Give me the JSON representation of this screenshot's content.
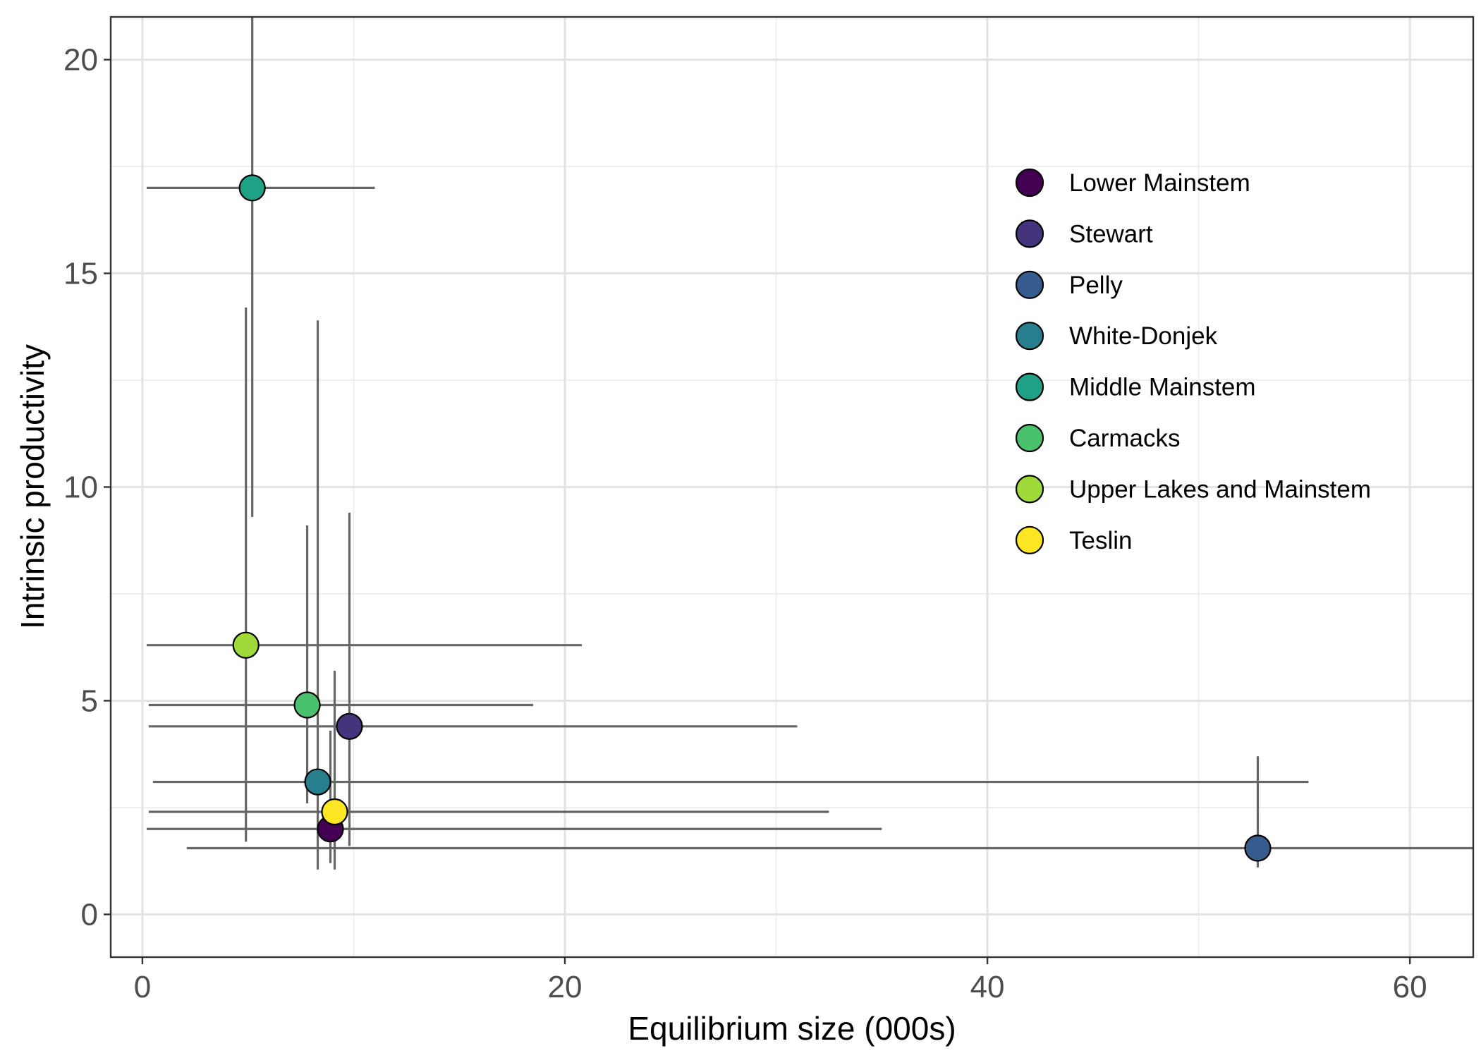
{
  "chart_data": {
    "type": "scatter",
    "title": "",
    "xlabel": "Equilibrium size (000s)",
    "ylabel": "Intrinsic productivity",
    "xlim": [
      -1.5,
      63
    ],
    "ylim": [
      -1,
      21
    ],
    "x_ticks": [
      0,
      20,
      40,
      60
    ],
    "x_minor_ticks": [
      10,
      30,
      50
    ],
    "y_ticks": [
      0,
      5,
      10,
      15,
      20
    ],
    "y_minor_ticks": [
      2.5,
      7.5,
      12.5,
      17.5
    ],
    "grid": true,
    "legend_position": "top-right",
    "error_bars": true,
    "series": [
      {
        "name": "Lower Mainstem",
        "color": "#440154",
        "x": 8.9,
        "y": 2.0,
        "x_low": 0.2,
        "x_high": 35.0,
        "y_low": 1.2,
        "y_high": 4.3
      },
      {
        "name": "Stewart",
        "color": "#46337E",
        "x": 9.8,
        "y": 4.4,
        "x_low": 0.3,
        "x_high": 31.0,
        "y_low": 1.6,
        "y_high": 9.4
      },
      {
        "name": "Pelly",
        "color": "#365C8D",
        "x": 52.8,
        "y": 1.55,
        "x_low": 2.1,
        "x_high": 63.0,
        "y_low": 1.1,
        "y_high": 3.7
      },
      {
        "name": "White-Donjek",
        "color": "#277F8E",
        "x": 8.3,
        "y": 3.1,
        "x_low": 0.5,
        "x_high": 55.2,
        "y_low": 1.05,
        "y_high": 13.9
      },
      {
        "name": "Middle Mainstem",
        "color": "#1FA187",
        "x": 5.2,
        "y": 17.0,
        "x_low": 0.2,
        "x_high": 11.0,
        "y_low": 9.3,
        "y_high": 21.0
      },
      {
        "name": "Carmacks",
        "color": "#4AC16D",
        "x": 7.8,
        "y": 4.9,
        "x_low": 0.3,
        "x_high": 18.5,
        "y_low": 2.6,
        "y_high": 9.1
      },
      {
        "name": "Upper Lakes and Mainstem",
        "color": "#9FDA3A",
        "x": 4.9,
        "y": 6.3,
        "x_low": 0.2,
        "x_high": 20.8,
        "y_low": 1.7,
        "y_high": 14.2
      },
      {
        "name": "Teslin",
        "color": "#FDE725",
        "x": 9.1,
        "y": 2.4,
        "x_low": 0.3,
        "x_high": 32.5,
        "y_low": 1.05,
        "y_high": 5.7
      }
    ]
  }
}
